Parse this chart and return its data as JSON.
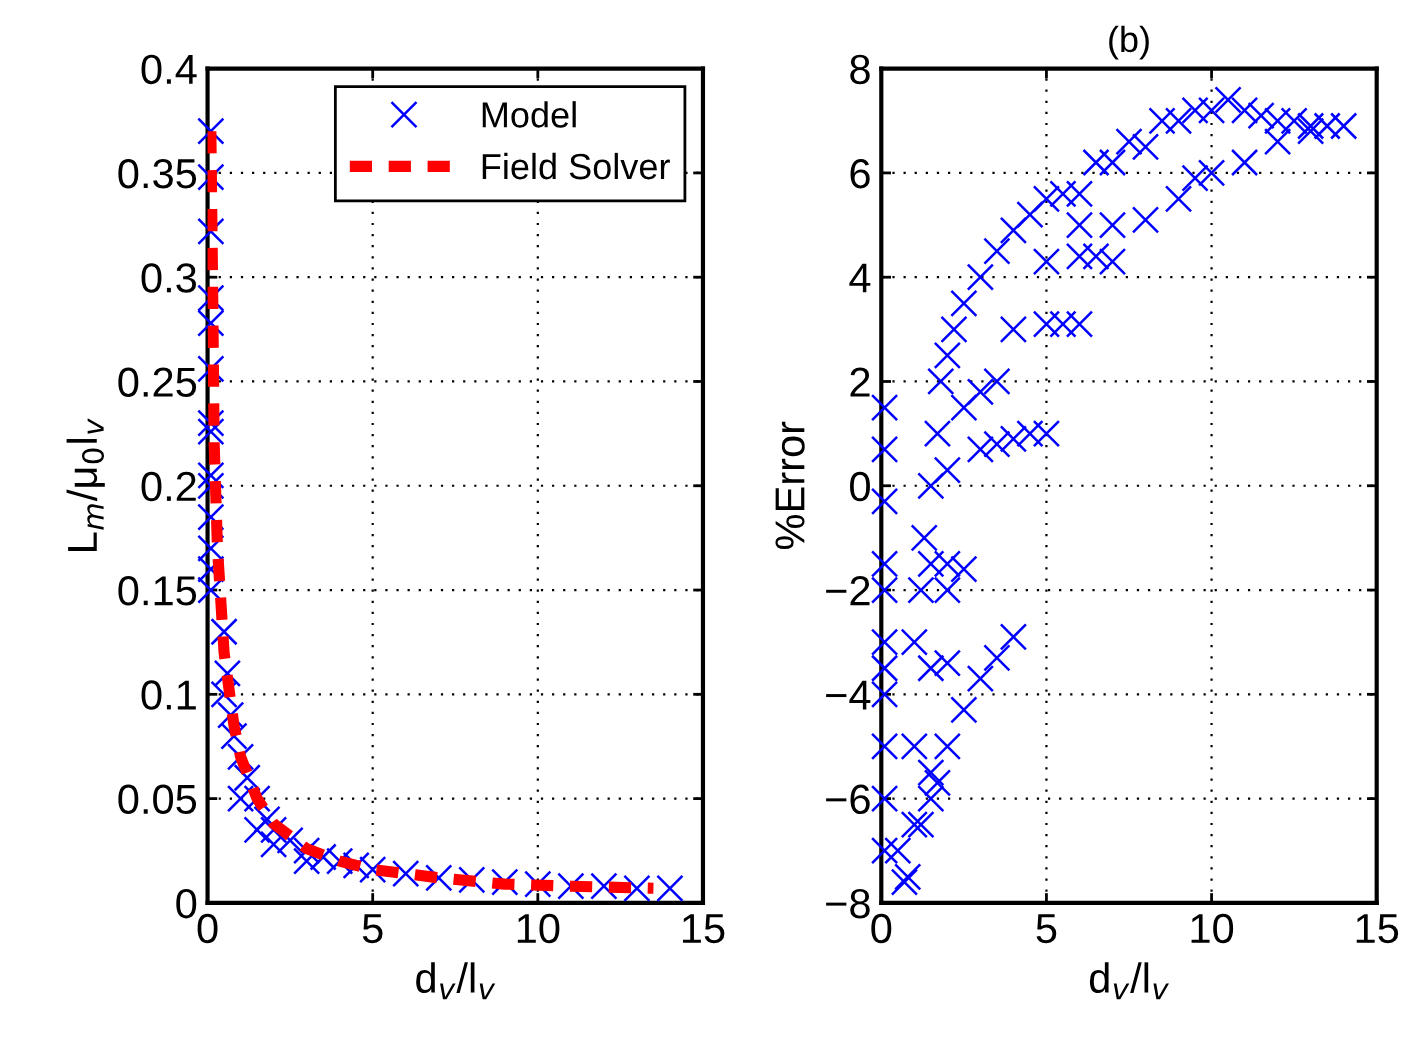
{
  "chart_data": [
    {
      "type": "scatter",
      "xlabel": "d$_{v}$/l$_{v}$",
      "ylabel": "L$_{m}$/μ$_{0}$l$_{v}$",
      "xlim": [
        0,
        15
      ],
      "ylim": [
        0,
        0.4
      ],
      "xticks": [
        0,
        5,
        10,
        15
      ],
      "yticks": [
        0,
        0.05,
        0.1,
        0.15,
        0.2,
        0.25,
        0.3,
        0.35,
        0.4
      ],
      "grid": true,
      "legend": "top right",
      "series": [
        {
          "name": "Model",
          "type": "scatter",
          "color": "#0000ff",
          "marker": "cross",
          "x": [
            0.1,
            0.1,
            0.1,
            0.1,
            0.1,
            0.1,
            0.1,
            0.1,
            0.1,
            0.1,
            0.1,
            0.1,
            0.1,
            0.1,
            0.5,
            0.5,
            0.6,
            0.7,
            0.8,
            1,
            1,
            1.2,
            1.5,
            1.5,
            1.8,
            2,
            2,
            2.5,
            3,
            3,
            3.5,
            4,
            4.5,
            5,
            6,
            7,
            8,
            9,
            10,
            11,
            12,
            13,
            14
          ],
          "values": [
            0.37,
            0.348,
            0.322,
            0.29,
            0.278,
            0.256,
            0.23,
            0.226,
            0.205,
            0.2,
            0.185,
            0.17,
            0.16,
            0.15,
            0.13,
            0.1,
            0.11,
            0.09,
            0.08,
            0.07,
            0.05,
            0.06,
            0.05,
            0.035,
            0.04,
            0.035,
            0.028,
            0.03,
            0.025,
            0.02,
            0.022,
            0.02,
            0.018,
            0.016,
            0.014,
            0.012,
            0.011,
            0.01,
            0.009,
            0.008,
            0.008,
            0.007,
            0.007
          ]
        },
        {
          "name": "Field Solver",
          "type": "line",
          "color": "#ff0000",
          "line_style": "dashed",
          "marker": "none",
          "x": [
            0.1,
            0.15,
            0.2,
            0.3,
            0.5,
            0.8,
            1,
            1.5,
            2,
            3,
            4,
            5,
            7,
            9,
            11,
            13.5
          ],
          "values": [
            0.37,
            0.3,
            0.22,
            0.17,
            0.12,
            0.085,
            0.07,
            0.05,
            0.038,
            0.026,
            0.02,
            0.016,
            0.012,
            0.009,
            0.008,
            0.007
          ]
        }
      ]
    },
    {
      "type": "scatter",
      "title": "(b)",
      "xlabel": "d$_{v}$/l$_{v}$",
      "ylabel": "%Error",
      "xlim": [
        0,
        15
      ],
      "ylim": [
        -8,
        8
      ],
      "xticks": [
        0,
        5,
        10,
        15
      ],
      "yticks": [
        {
          "value": -8,
          "label": "−8"
        },
        {
          "value": -6,
          "label": "−6"
        },
        {
          "value": -4,
          "label": "−4"
        },
        {
          "value": -2,
          "label": "−2"
        },
        0,
        2,
        4,
        6,
        8
      ],
      "grid": true,
      "legend": false,
      "series": [
        {
          "type": "scatter",
          "color": "#0000ff",
          "marker": "cross",
          "x": [
            0.1,
            0.1,
            0.1,
            0.1,
            0.1,
            0.1,
            0.1,
            0.1,
            0.1,
            0.1,
            0.1,
            0.5,
            0.7,
            0.8,
            1,
            1,
            1,
            1.2,
            1.3,
            1.5,
            1.5,
            1.7,
            1.8,
            2,
            2.2,
            2.5,
            3,
            3.5,
            4,
            4.5,
            5,
            5.5,
            6,
            6.5,
            7,
            7.5,
            8,
            8.5,
            9,
            9.5,
            10,
            10.5,
            11,
            11.5,
            12,
            12.5,
            13,
            13.5,
            14,
            6,
            7,
            8,
            9,
            9.5,
            10,
            11,
            12,
            13,
            5,
            6,
            6.5,
            7,
            4,
            5,
            5.5,
            6,
            2.5,
            3,
            3.5,
            2,
            3,
            3.5,
            4,
            4.5,
            5,
            2,
            2.5,
            2,
            1.5,
            2,
            1.5,
            2,
            2.5,
            3,
            3.5,
            4,
            1.5,
            1.2,
            1.7
          ],
          "values": [
            1.5,
            0.7,
            -0.3,
            -1.5,
            -2,
            -3,
            -3.5,
            -4,
            -5,
            -6,
            -7,
            -7,
            -7.6,
            -7.5,
            -6.5,
            -5,
            -3,
            -2,
            -1,
            0,
            -1.5,
            1,
            2,
            2.5,
            3,
            3.5,
            4,
            4.5,
            4.9,
            5.2,
            5.5,
            5.6,
            5.6,
            6.2,
            6.2,
            6.6,
            6.5,
            7,
            7,
            7.2,
            7.2,
            7.4,
            7.2,
            7.1,
            7,
            7,
            6.9,
            6.9,
            6.9,
            5,
            5,
            5.1,
            5.5,
            5.9,
            6,
            6.2,
            6.6,
            6.8,
            4.3,
            4.4,
            4.4,
            4.3,
            3,
            3.1,
            3.1,
            3.1,
            1.5,
            1.8,
            2,
            0.3,
            0.7,
            0.8,
            0.9,
            1,
            1,
            -1.5,
            -1.6,
            -2,
            -3.5,
            -3.4,
            -5.5,
            -5,
            -4.3,
            -3.7,
            -3.3,
            -2.9,
            -6,
            -6.5,
            -5.7
          ]
        }
      ]
    }
  ]
}
